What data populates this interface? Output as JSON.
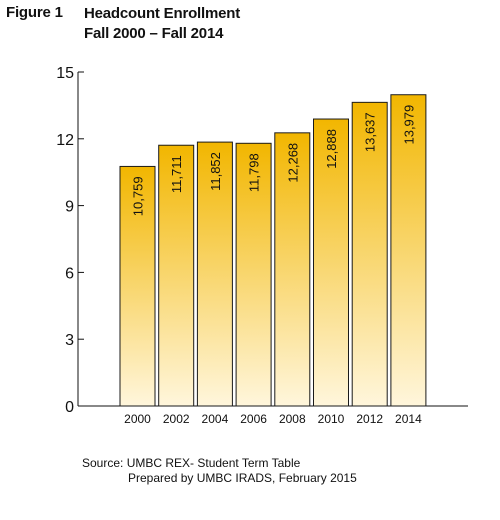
{
  "figure_label": "Figure 1",
  "title_line1": "Headcount Enrollment",
  "title_line2": "Fall 2000 – Fall 2014",
  "source_line1": "Source: UMBC REX- Student Term Table",
  "source_line2": "Prepared by UMBC IRADS, February 2015",
  "colors": {
    "bar_top": "#F2B600",
    "bar_bottom": "#FFF6DC",
    "bar_stroke": "#1A1A1A"
  },
  "chart_data": {
    "type": "bar",
    "categories": [
      "2000",
      "2002",
      "2004",
      "2006",
      "2008",
      "2010",
      "2012",
      "2014"
    ],
    "values": [
      10.759,
      11.711,
      11.852,
      11.798,
      12.268,
      12.888,
      13.637,
      13.979
    ],
    "data_labels": [
      "10,759",
      "11,711",
      "11,852",
      "11,798",
      "12,268",
      "12,888",
      "13,637",
      "13,979"
    ],
    "yticks": [
      "0",
      "3",
      "6",
      "9",
      "12",
      "15"
    ],
    "ylim": [
      0,
      15
    ],
    "grid": false,
    "legend": false
  }
}
